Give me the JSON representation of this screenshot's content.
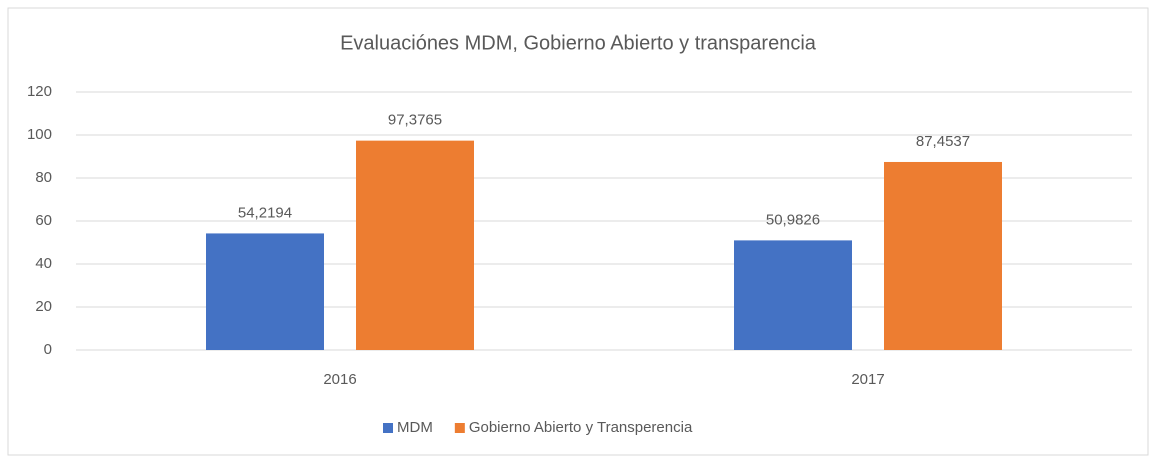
{
  "chart_data": {
    "type": "bar",
    "title": "Evaluaciónes MDM, Gobierno Abierto y transparencia",
    "categories": [
      "2016",
      "2017"
    ],
    "series": [
      {
        "name": "MDM",
        "color": "#4472c4",
        "values": [
          54.2194,
          50.9826
        ],
        "value_labels": [
          "54,2194",
          "50,9826"
        ]
      },
      {
        "name": "Gobierno Abierto y Transperencia",
        "color": "#ed7d31",
        "values": [
          97.3765,
          87.4537
        ],
        "value_labels": [
          "97,3765",
          "87,4537"
        ]
      }
    ],
    "ylim": [
      0,
      120
    ],
    "yticks": [
      0,
      20,
      40,
      60,
      80,
      100,
      120
    ],
    "grid": true,
    "legend": "bottom"
  }
}
